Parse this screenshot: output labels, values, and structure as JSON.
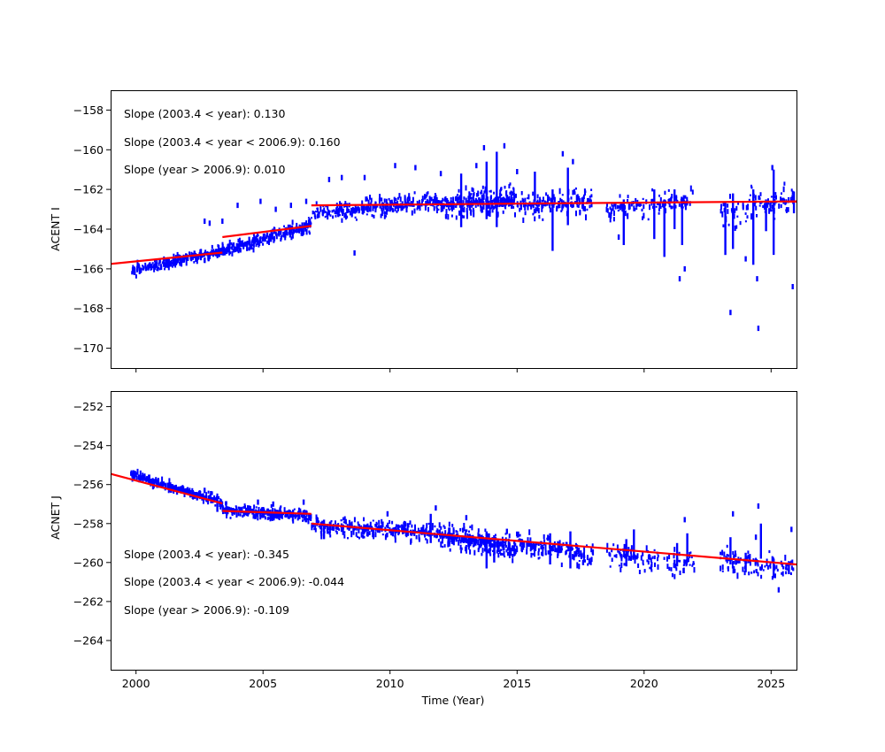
{
  "chart_data": [
    {
      "type": "scatter",
      "ylabel": "ACENT I",
      "xlabel": "",
      "xlim": [
        1999,
        2026
      ],
      "ylim": [
        -171,
        -157
      ],
      "xticks": [
        2000,
        2005,
        2010,
        2015,
        2020,
        2025
      ],
      "show_xtick_labels": false,
      "yticks": [
        -158,
        -160,
        -162,
        -164,
        -166,
        -168,
        -170
      ],
      "ytick_labels": [
        "−158",
        "−160",
        "−162",
        "−164",
        "−166",
        "−168",
        "−170"
      ],
      "annotations": [
        "Slope (2003.4 < year):  0.130",
        "Slope (2003.4 <  year < 2006.9): 0.160",
        "Slope (year > 2006.9):  0.010"
      ],
      "fit_lines": [
        {
          "x": [
            1999.0,
            2003.4
          ],
          "y": [
            -165.75,
            -165.18
          ]
        },
        {
          "x": [
            2003.4,
            2006.9
          ],
          "y": [
            -164.4,
            -163.84
          ]
        },
        {
          "x": [
            2006.9,
            2026.0
          ],
          "y": [
            -162.8,
            -162.6
          ]
        }
      ],
      "series": [
        {
          "name": "data",
          "color": "#0000ff",
          "segments": [
            [
              1999.8,
              2003.4,
              -166.1,
              -165.1,
              0.35,
              260,
              11
            ],
            [
              2003.4,
              2006.9,
              -165.1,
              -163.8,
              0.45,
              260,
              12
            ],
            [
              2006.9,
              2012.0,
              -163.2,
              -162.6,
              0.6,
              300,
              13
            ],
            [
              2012.0,
              2015.0,
              -162.8,
              -162.5,
              0.9,
              280,
              14
            ],
            [
              2015.0,
              2018.0,
              -162.8,
              -162.6,
              0.9,
              160,
              15
            ],
            [
              2018.5,
              2022.0,
              -163.0,
              -162.5,
              0.9,
              120,
              16
            ],
            [
              2023.0,
              2025.9,
              -163.2,
              -162.5,
              1.1,
              110,
              17
            ]
          ]
        }
      ],
      "extra_points": [
        [
          2002.7,
          -163.6
        ],
        [
          2002.9,
          -163.7
        ],
        [
          2003.4,
          -163.6
        ],
        [
          2004.0,
          -162.8
        ],
        [
          2004.9,
          -162.6
        ],
        [
          2005.5,
          -163.0
        ],
        [
          2006.1,
          -162.8
        ],
        [
          2006.7,
          -162.6
        ],
        [
          2007.6,
          -161.5
        ],
        [
          2008.1,
          -161.4
        ],
        [
          2008.6,
          -165.2
        ],
        [
          2009.0,
          -161.4
        ],
        [
          2010.2,
          -160.8
        ],
        [
          2011.0,
          -160.9
        ],
        [
          2012.0,
          -161.2
        ],
        [
          2013.4,
          -160.8
        ],
        [
          2013.7,
          -159.9
        ],
        [
          2014.5,
          -159.8
        ],
        [
          2015.0,
          -161.1
        ],
        [
          2016.8,
          -160.2
        ],
        [
          2017.2,
          -160.6
        ],
        [
          2019.0,
          -164.4
        ],
        [
          2021.4,
          -166.5
        ],
        [
          2021.6,
          -166.0
        ],
        [
          2023.4,
          -168.2
        ],
        [
          2024.0,
          -165.5
        ],
        [
          2024.5,
          -169.0
        ],
        [
          2024.45,
          -166.5
        ],
        [
          2025.05,
          -160.9
        ],
        [
          2025.85,
          -166.9
        ]
      ],
      "excursions": [
        [
          2012.8,
          -161.2,
          -163.9
        ],
        [
          2013.8,
          -160.6,
          -163.5
        ],
        [
          2014.2,
          -160.1,
          -163.9
        ],
        [
          2015.7,
          -161.1,
          -162.6
        ],
        [
          2016.4,
          -162.0,
          -165.1
        ],
        [
          2017.0,
          -160.9,
          -163.8
        ],
        [
          2019.2,
          -162.5,
          -164.8
        ],
        [
          2020.4,
          -162.0,
          -164.5
        ],
        [
          2020.8,
          -162.5,
          -165.4
        ],
        [
          2021.2,
          -162.0,
          -164.0
        ],
        [
          2021.5,
          -162.5,
          -164.8
        ],
        [
          2023.2,
          -162.6,
          -165.3
        ],
        [
          2023.5,
          -162.2,
          -165.0
        ],
        [
          2024.3,
          -162.0,
          -165.8
        ],
        [
          2024.8,
          -162.5,
          -164.1
        ],
        [
          2025.1,
          -161.0,
          -165.3
        ],
        [
          2025.9,
          -162.1,
          -163.2
        ]
      ]
    },
    {
      "type": "scatter",
      "ylabel": "ACNET J",
      "xlabel": "Time (Year)",
      "xlim": [
        1999,
        2026
      ],
      "ylim": [
        -265.5,
        -251.2
      ],
      "xticks": [
        2000,
        2005,
        2010,
        2015,
        2020,
        2025
      ],
      "xtick_labels": [
        "2000",
        "2005",
        "2010",
        "2015",
        "2020",
        "2025"
      ],
      "show_xtick_labels": true,
      "yticks": [
        -252,
        -254,
        -256,
        -258,
        -260,
        -262,
        -264
      ],
      "ytick_labels": [
        "−252",
        "−254",
        "−256",
        "−258",
        "−260",
        "−262",
        "−264"
      ],
      "annotations": [
        "Slope (2003.4 < year):  -0.345",
        "Slope (2003.4 <  year < 2006.9): -0.044",
        "Slope (year > 2006.9):  -0.109"
      ],
      "fit_lines": [
        {
          "x": [
            1999.0,
            2003.4
          ],
          "y": [
            -255.45,
            -256.97
          ]
        },
        {
          "x": [
            2003.4,
            2006.9
          ],
          "y": [
            -257.35,
            -257.5
          ]
        },
        {
          "x": [
            2006.9,
            2026.0
          ],
          "y": [
            -258.0,
            -260.1
          ]
        }
      ],
      "series": [
        {
          "name": "data",
          "color": "#0000ff",
          "segments": [
            [
              1999.8,
              2003.4,
              -255.5,
              -256.9,
              0.35,
              260,
              21
            ],
            [
              2003.4,
              2006.9,
              -257.3,
              -257.6,
              0.4,
              260,
              22
            ],
            [
              2006.9,
              2012.0,
              -258.1,
              -258.5,
              0.6,
              300,
              23
            ],
            [
              2012.0,
              2015.0,
              -258.6,
              -259.3,
              0.8,
              280,
              24
            ],
            [
              2015.0,
              2018.0,
              -259.0,
              -259.7,
              0.8,
              160,
              25
            ],
            [
              2018.5,
              2022.0,
              -259.6,
              -260.0,
              0.9,
              120,
              26
            ],
            [
              2023.0,
              2025.9,
              -259.8,
              -260.4,
              0.9,
              110,
              27
            ]
          ]
        }
      ],
      "extra_points": [
        [
          1999.9,
          -255.4
        ],
        [
          2002.7,
          -256.3
        ],
        [
          2004.8,
          -256.9
        ],
        [
          2005.4,
          -257.0
        ],
        [
          2006.6,
          -256.9
        ],
        [
          2009.9,
          -257.5
        ],
        [
          2011.8,
          -257.2
        ],
        [
          2013.0,
          -257.7
        ],
        [
          2014.6,
          -258.4
        ],
        [
          2017.6,
          -260.0
        ],
        [
          2021.6,
          -257.8
        ],
        [
          2023.5,
          -257.5
        ],
        [
          2024.5,
          -257.1
        ],
        [
          2024.4,
          -258.7
        ],
        [
          2025.3,
          -261.4
        ],
        [
          2025.8,
          -258.3
        ],
        [
          2025.6,
          -260.2
        ]
      ],
      "excursions": [
        [
          2003.2,
          -256.8,
          -257.4
        ],
        [
          2007.4,
          -257.8,
          -258.8
        ],
        [
          2011.6,
          -257.5,
          -259.0
        ],
        [
          2013.8,
          -258.4,
          -260.3
        ],
        [
          2014.1,
          -258.6,
          -260.0
        ],
        [
          2016.3,
          -258.5,
          -260.1
        ],
        [
          2017.1,
          -258.4,
          -260.3
        ],
        [
          2019.3,
          -258.8,
          -260.2
        ],
        [
          2019.6,
          -258.3,
          -259.8
        ],
        [
          2021.3,
          -259.0,
          -260.2
        ],
        [
          2021.7,
          -258.5,
          -260.0
        ],
        [
          2023.4,
          -258.7,
          -260.1
        ],
        [
          2024.0,
          -259.5,
          -260.5
        ],
        [
          2024.6,
          -258.0,
          -259.8
        ],
        [
          2025.1,
          -259.8,
          -260.8
        ],
        [
          2025.7,
          -260.0,
          -260.6
        ]
      ]
    }
  ],
  "colors": {
    "data": "#0000ff",
    "fit": "#ff0000",
    "axes": "#000000",
    "background": "#ffffff"
  }
}
